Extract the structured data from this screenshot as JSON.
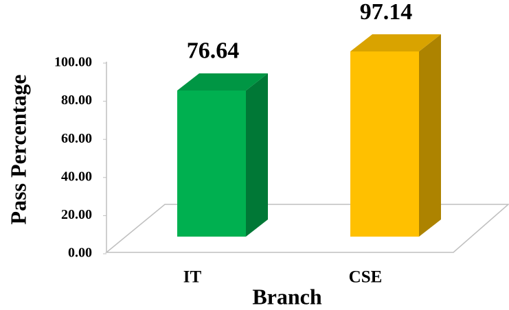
{
  "chart_data": {
    "type": "bar3d",
    "categories": [
      "IT",
      "CSE"
    ],
    "values": [
      76.64,
      97.14
    ],
    "colors": [
      "#00b050",
      "#ffc000"
    ],
    "xlabel": "Branch",
    "ylabel": "Pass Percentage",
    "ylim": [
      0,
      100
    ],
    "yticks": [
      {
        "value": 0,
        "label": "0.00"
      },
      {
        "value": 20,
        "label": "20.00"
      },
      {
        "value": 40,
        "label": "40.00"
      },
      {
        "value": 60,
        "label": "60.00"
      },
      {
        "value": 80,
        "label": "80.00"
      },
      {
        "value": 100,
        "label": "100.00"
      }
    ]
  }
}
